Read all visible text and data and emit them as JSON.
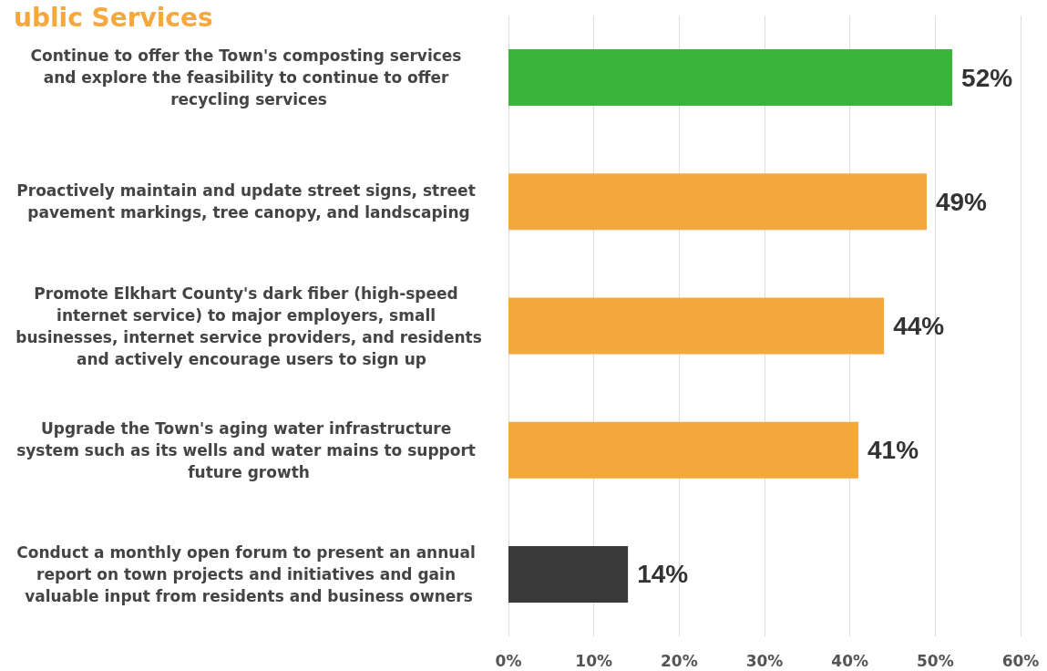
{
  "chart_data": {
    "type": "bar",
    "orientation": "horizontal",
    "title": "ublic Services",
    "categories": [
      "Continue to offer the Town's composting services and explore the feasibility to continue to offer recycling services",
      "Proactively maintain and update street signs, street pavement markings, tree canopy, and landscaping",
      "Promote Elkhart County's dark fiber (high-speed internet service) to major employers, small businesses, internet service providers, and residents and actively encourage users to sign up",
      "Upgrade the Town's aging water infrastructure system such as its wells and water mains to support future growth",
      "Conduct a monthly open forum to present an annual report on town projects and initiatives and gain valuable input from residents and business owners"
    ],
    "values": [
      52,
      49,
      44,
      41,
      14
    ],
    "value_labels": [
      "52%",
      "49%",
      "44%",
      "41%",
      "14%"
    ],
    "colors": [
      "#3cb43c",
      "#f5a83c",
      "#f5a83c",
      "#f5a83c",
      "#3a3a3a"
    ],
    "xlim": [
      0,
      60
    ],
    "xticks": [
      {
        "value": 0,
        "label": "0%"
      },
      {
        "value": 10,
        "label": "10%"
      },
      {
        "value": 20,
        "label": "20%"
      },
      {
        "value": 30,
        "label": "30%"
      },
      {
        "value": 40,
        "label": "40%"
      },
      {
        "value": 50,
        "label": "50%"
      },
      {
        "value": 60,
        "label": "60%"
      }
    ],
    "grid": "x"
  }
}
